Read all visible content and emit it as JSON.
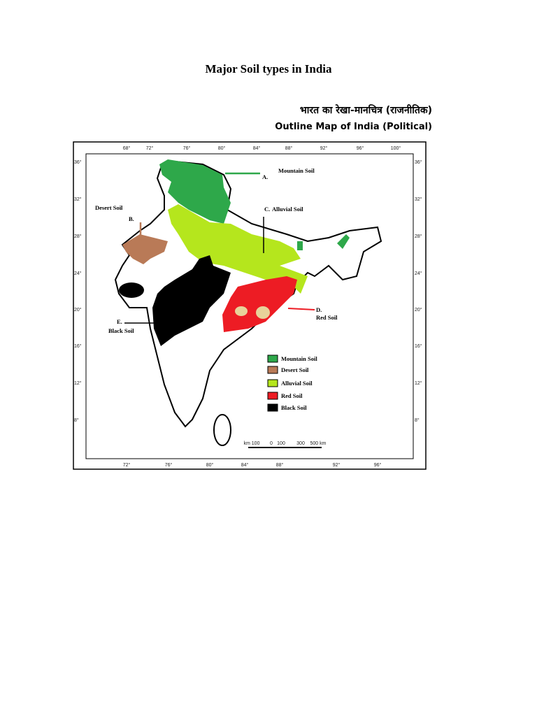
{
  "header": {
    "title": "Major Soil types in India",
    "hindi_title": "भारत का रेखा-मानचित्र (राजनीतिक)",
    "english_title": "Outline Map of India (Political)"
  },
  "map": {
    "top_ticks": [
      "68°",
      "72°",
      "76°",
      "80°",
      "84°",
      "88°",
      "92°",
      "96°",
      "100°"
    ],
    "bottom_ticks": [
      "72°",
      "76°",
      "80°",
      "84°",
      "88°",
      "92°",
      "96°"
    ],
    "left_ticks": [
      "36°",
      "32°",
      "28°",
      "24°",
      "20°",
      "16°",
      "12°",
      "8°"
    ],
    "right_ticks": [
      "36°",
      "32°",
      "28°",
      "24°",
      "20°",
      "16°",
      "12°",
      "8°"
    ],
    "annotations": [
      {
        "marker": "A.",
        "label": "Mountain Soil"
      },
      {
        "marker": "B.",
        "label": "Desert Soil"
      },
      {
        "marker": "C.",
        "label": "Alluvial Soil"
      },
      {
        "marker": "D.",
        "label": "Red Soil"
      },
      {
        "marker": "E.",
        "label": "Black Soil"
      }
    ],
    "legend": [
      {
        "label": "Mountain Soil",
        "color": "#2ea84a"
      },
      {
        "label": "Desert Soil",
        "color": "#b97a57"
      },
      {
        "label": "Alluvial Soil",
        "color": "#b5e61d"
      },
      {
        "label": "Red Soil",
        "color": "#ed1c24"
      },
      {
        "label": "Black Soil",
        "color": "#000000"
      }
    ],
    "scale": [
      "km 100",
      "0",
      "100",
      "300",
      "500 km"
    ]
  }
}
